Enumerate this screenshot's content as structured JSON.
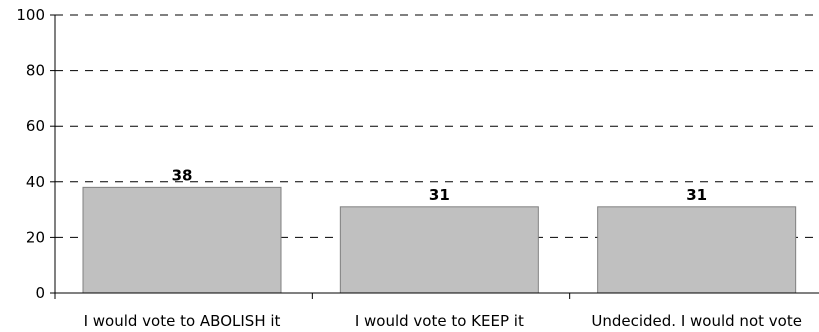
{
  "chart_data": {
    "type": "bar",
    "categories": [
      "I would vote to ABOLISH it",
      "I would vote to KEEP it",
      "Undecided. I would not vote"
    ],
    "values": [
      38,
      31,
      31
    ],
    "data_labels": [
      "38",
      "31",
      "31"
    ],
    "title": "",
    "xlabel": "",
    "ylabel": "",
    "ylim": [
      0,
      100
    ],
    "yticks": [
      0,
      20,
      40,
      60,
      80,
      100
    ],
    "ytick_labels": [
      "0",
      "20",
      "40",
      "60",
      "80",
      "100"
    ],
    "grid": true,
    "grid_style": "dashed",
    "legend": "none",
    "colors": {
      "bar_fill": "#c0c0c0",
      "bar_stroke": "#808080",
      "grid": "#000000",
      "axis": "#000000"
    }
  }
}
